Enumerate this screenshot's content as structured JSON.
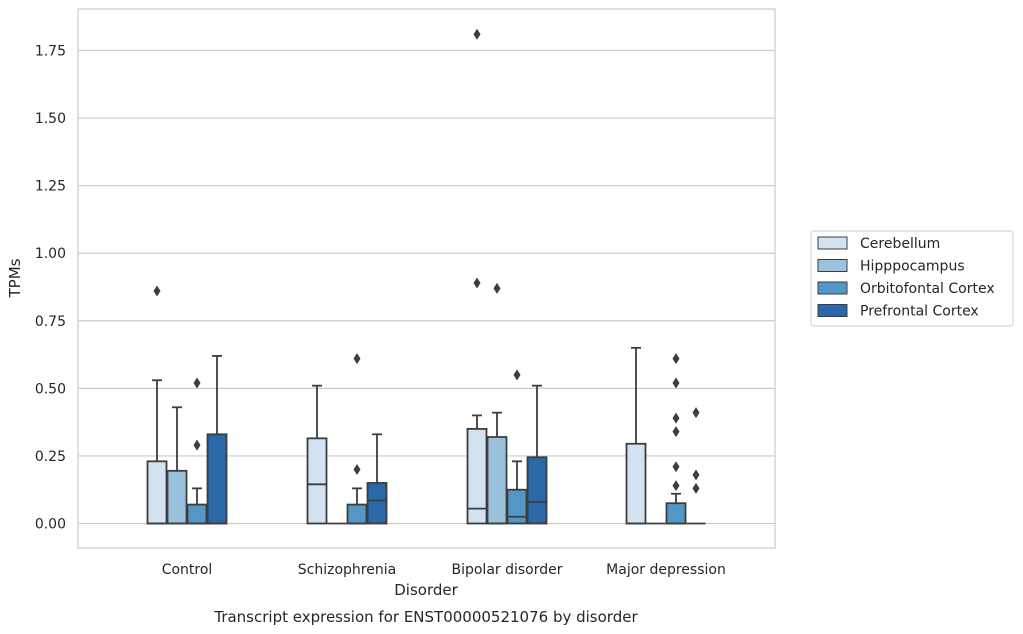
{
  "chart_data": {
    "type": "box",
    "title": "Transcript expression for ENST00000521076 by disorder",
    "xlabel": "Disorder",
    "ylabel": "TPMs",
    "ylim": [
      -0.09,
      1.9
    ],
    "yticks": [
      0.0,
      0.25,
      0.5,
      0.75,
      1.0,
      1.25,
      1.5,
      1.75
    ],
    "ytick_labels": [
      "0.00",
      "0.25",
      "0.50",
      "0.75",
      "1.00",
      "1.25",
      "1.50",
      "1.75"
    ],
    "grid": "horizontal",
    "legend_position": "right",
    "categories": [
      "Control",
      "Schizophrenia",
      "Bipolar disorder",
      "Major depression"
    ],
    "series": [
      {
        "name": "Cerebellum",
        "color": "#d2e2f1",
        "boxes": [
          {
            "q1": 0.0,
            "median": 0.0,
            "q3": 0.23,
            "whisker_low": 0.0,
            "whisker_high": 0.53,
            "outliers": [
              0.86
            ]
          },
          {
            "q1": 0.0,
            "median": 0.145,
            "q3": 0.315,
            "whisker_low": 0.0,
            "whisker_high": 0.51,
            "outliers": []
          },
          {
            "q1": 0.0,
            "median": 0.055,
            "q3": 0.35,
            "whisker_low": 0.0,
            "whisker_high": 0.4,
            "outliers": [
              0.89,
              1.81
            ]
          },
          {
            "q1": 0.0,
            "median": 0.0,
            "q3": 0.295,
            "whisker_low": 0.0,
            "whisker_high": 0.65,
            "outliers": []
          }
        ]
      },
      {
        "name": "Hipppocampus",
        "color": "#9ac2dc",
        "boxes": [
          {
            "q1": 0.0,
            "median": 0.0,
            "q3": 0.195,
            "whisker_low": 0.0,
            "whisker_high": 0.43,
            "outliers": []
          },
          {
            "q1": 0.0,
            "median": 0.0,
            "q3": 0.0,
            "whisker_low": 0.0,
            "whisker_high": 0.0,
            "outliers": []
          },
          {
            "q1": 0.0,
            "median": 0.0,
            "q3": 0.32,
            "whisker_low": 0.0,
            "whisker_high": 0.41,
            "outliers": [
              0.87
            ]
          },
          {
            "q1": 0.0,
            "median": 0.0,
            "q3": 0.0,
            "whisker_low": 0.0,
            "whisker_high": 0.0,
            "outliers": []
          }
        ]
      },
      {
        "name": "Orbitofontal Cortex",
        "color": "#5397c6",
        "boxes": [
          {
            "q1": 0.0,
            "median": 0.0,
            "q3": 0.07,
            "whisker_low": 0.0,
            "whisker_high": 0.13,
            "outliers": [
              0.29,
              0.52
            ]
          },
          {
            "q1": 0.0,
            "median": 0.0,
            "q3": 0.07,
            "whisker_low": 0.0,
            "whisker_high": 0.13,
            "outliers": [
              0.2,
              0.61
            ]
          },
          {
            "q1": 0.0,
            "median": 0.025,
            "q3": 0.125,
            "whisker_low": 0.0,
            "whisker_high": 0.23,
            "outliers": [
              0.55
            ]
          },
          {
            "q1": 0.0,
            "median": 0.0,
            "q3": 0.075,
            "whisker_low": 0.0,
            "whisker_high": 0.11,
            "outliers": [
              0.14,
              0.21,
              0.34,
              0.39,
              0.52,
              0.61
            ]
          }
        ]
      },
      {
        "name": "Prefrontal Cortex",
        "color": "#2a68a8",
        "boxes": [
          {
            "q1": 0.0,
            "median": 0.0,
            "q3": 0.33,
            "whisker_low": 0.0,
            "whisker_high": 0.62,
            "outliers": []
          },
          {
            "q1": 0.0,
            "median": 0.085,
            "q3": 0.15,
            "whisker_low": 0.0,
            "whisker_high": 0.33,
            "outliers": []
          },
          {
            "q1": 0.0,
            "median": 0.08,
            "q3": 0.245,
            "whisker_low": 0.0,
            "whisker_high": 0.51,
            "outliers": []
          },
          {
            "q1": 0.0,
            "median": 0.0,
            "q3": 0.0,
            "whisker_low": 0.0,
            "whisker_high": 0.0,
            "outliers": [
              0.13,
              0.18,
              0.41
            ]
          }
        ]
      }
    ]
  }
}
